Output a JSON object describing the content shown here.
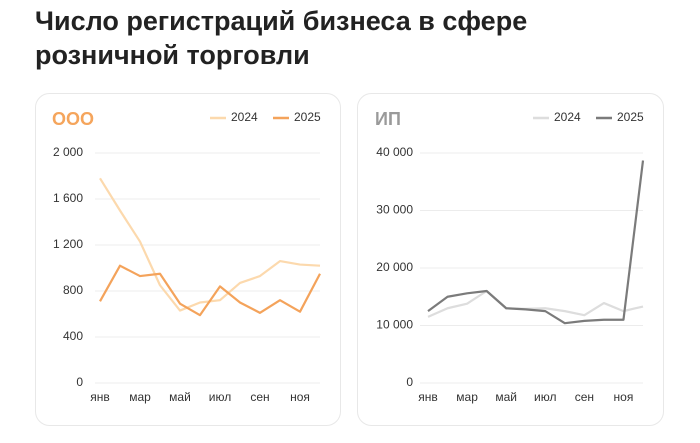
{
  "title": [
    "Число регистраций бизнеса в сфере",
    "розничной торговли"
  ],
  "chart_data": [
    {
      "type": "line",
      "title": "ООО",
      "title_color": "#f5a55c",
      "categories": [
        "янв",
        null,
        "мар",
        null,
        "май",
        null,
        "июл",
        null,
        "сен",
        null,
        "ноя",
        null
      ],
      "series": [
        {
          "name": "2024",
          "color": "#fcd9ad",
          "values": [
            1780,
            1500,
            1230,
            850,
            630,
            700,
            720,
            870,
            930,
            1060,
            1030,
            1020
          ]
        },
        {
          "name": "2025",
          "color": "#f4a35b",
          "values": [
            710,
            1020,
            930,
            950,
            690,
            590,
            840,
            700,
            610,
            720,
            620,
            950
          ]
        }
      ],
      "ylim": [
        0,
        2000
      ],
      "yticks": [
        0,
        400,
        800,
        {
          "value": 1200,
          "label": "1 200"
        },
        {
          "value": 1600,
          "label": "1 600"
        },
        {
          "value": 2000,
          "label": "2 000"
        }
      ],
      "grid": true
    },
    {
      "type": "line",
      "title": "ИП",
      "title_color": "#9a9a9a",
      "categories": [
        "янв",
        null,
        "мар",
        null,
        "май",
        null,
        "июл",
        null,
        "сен",
        null,
        "ноя",
        null
      ],
      "series": [
        {
          "name": "2024",
          "color": "#dddddd",
          "values": [
            11500,
            13000,
            13800,
            16000,
            13000,
            12900,
            13000,
            12500,
            11800,
            13900,
            12500,
            13300
          ]
        },
        {
          "name": "2025",
          "color": "#7b7b7b",
          "values": [
            12500,
            15000,
            15600,
            16000,
            13000,
            12800,
            12500,
            10400,
            10800,
            11000,
            11000,
            38700
          ]
        }
      ],
      "ylim": [
        0,
        40000
      ],
      "yticks": [
        0,
        {
          "value": 10000,
          "label": "10 000"
        },
        {
          "value": 20000,
          "label": "20 000"
        },
        {
          "value": 30000,
          "label": "30 000"
        },
        {
          "value": 40000,
          "label": "40 000"
        }
      ],
      "grid": true
    }
  ]
}
